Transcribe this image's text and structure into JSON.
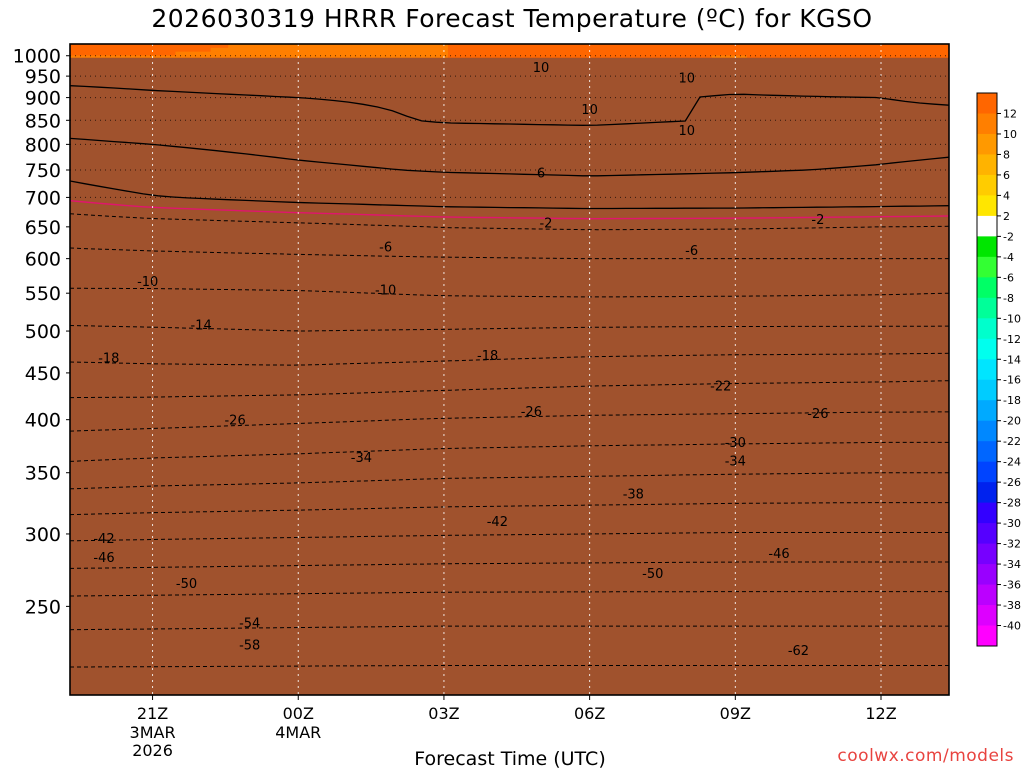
{
  "title": "2026030319 HRRR Forecast Temperature (ºC) for KGSO",
  "credit": "coolwx.com/models",
  "chart_data": {
    "type": "heatmap",
    "title": "2026030319 HRRR Forecast Temperature (ºC) for KGSO",
    "xlabel": "Forecast Time (UTC)",
    "ylabel": "",
    "x_range_hours_from_21Z": [
      -1.7,
      16.4
    ],
    "y_range_mb": [
      1030,
      200
    ],
    "y_scale": "log",
    "grid": true,
    "x_ticks": [
      {
        "hour": 0,
        "label": "21Z",
        "label2": "3MAR",
        "label3": "2026"
      },
      {
        "hour": 3,
        "label": "00Z",
        "label2": "4MAR",
        "label3": ""
      },
      {
        "hour": 6,
        "label": "03Z",
        "label2": "",
        "label3": ""
      },
      {
        "hour": 9,
        "label": "06Z",
        "label2": "",
        "label3": ""
      },
      {
        "hour": 12,
        "label": "09Z",
        "label2": "",
        "label3": ""
      },
      {
        "hour": 15,
        "label": "12Z",
        "label2": "",
        "label3": ""
      }
    ],
    "y_ticks": [
      250,
      300,
      350,
      400,
      450,
      500,
      550,
      600,
      650,
      700,
      750,
      800,
      850,
      900,
      950,
      1000
    ],
    "colorbar": {
      "placement": "right",
      "labels": [
        "12",
        "10",
        "8",
        "6",
        "4",
        "2",
        "-2",
        "-4",
        "-6",
        "-8",
        "-10",
        "-12",
        "-14",
        "-16",
        "-18",
        "-20",
        "-22",
        "-24",
        "-26",
        "-28",
        "-30",
        "-32",
        "-34",
        "-36",
        "-38",
        "-40"
      ],
      "bins": [
        {
          "hi": 14,
          "lo": 12,
          "color": "#ff6600"
        },
        {
          "hi": 12,
          "lo": 10,
          "color": "#ff7f00"
        },
        {
          "hi": 10,
          "lo": 8,
          "color": "#ff9900"
        },
        {
          "hi": 8,
          "lo": 6,
          "color": "#ffb300"
        },
        {
          "hi": 6,
          "lo": 4,
          "color": "#ffcc00"
        },
        {
          "hi": 4,
          "lo": 2,
          "color": "#ffe600"
        },
        {
          "hi": 2,
          "lo": -2,
          "color": "#ffffff"
        },
        {
          "hi": -2,
          "lo": -4,
          "color": "#00e600"
        },
        {
          "hi": -4,
          "lo": -6,
          "color": "#33ff33"
        },
        {
          "hi": -6,
          "lo": -8,
          "color": "#00ff66"
        },
        {
          "hi": -8,
          "lo": -10,
          "color": "#00ff99"
        },
        {
          "hi": -10,
          "lo": -12,
          "color": "#00ffcc"
        },
        {
          "hi": -12,
          "lo": -14,
          "color": "#00ffee"
        },
        {
          "hi": -14,
          "lo": -16,
          "color": "#00e5ff"
        },
        {
          "hi": -16,
          "lo": -18,
          "color": "#00ccff"
        },
        {
          "hi": -18,
          "lo": -20,
          "color": "#00aaff"
        },
        {
          "hi": -20,
          "lo": -22,
          "color": "#0088ff"
        },
        {
          "hi": -22,
          "lo": -24,
          "color": "#0066ff"
        },
        {
          "hi": -24,
          "lo": -26,
          "color": "#0044ff"
        },
        {
          "hi": -26,
          "lo": -28,
          "color": "#0022ee"
        },
        {
          "hi": -28,
          "lo": -30,
          "color": "#3300ff"
        },
        {
          "hi": -30,
          "lo": -32,
          "color": "#5500ff"
        },
        {
          "hi": -32,
          "lo": -34,
          "color": "#7700ff"
        },
        {
          "hi": -34,
          "lo": -36,
          "color": "#9900ff"
        },
        {
          "hi": -36,
          "lo": -38,
          "color": "#bb00ff"
        },
        {
          "hi": -38,
          "lo": -40,
          "color": "#dd00ff"
        },
        {
          "hi": -40,
          "lo": -42,
          "color": "#ff00ff"
        }
      ]
    },
    "ground_color": "#a0522d",
    "ground_level_mb": 995,
    "profile": {
      "pressures": [
        1000,
        950,
        900,
        850,
        800,
        750,
        700,
        650,
        600,
        550,
        500,
        450,
        400,
        350,
        300,
        250,
        200
      ],
      "times": [
        -1.7,
        0,
        3,
        6,
        9,
        12,
        15,
        16.4
      ],
      "temps": [
        [
          12.0,
          12.0,
          11.5,
          12.0,
          12.5,
          12.0,
          13.0,
          13.5
        ],
        [
          10.8,
          11.0,
          11.5,
          12.0,
          11.5,
          11.0,
          12.0,
          12.5
        ],
        [
          9.0,
          9.5,
          10.0,
          10.5,
          10.5,
          9.8,
          10.0,
          10.5
        ],
        [
          7.5,
          8.0,
          8.8,
          10.3,
          10.6,
          9.8,
          9.2,
          9.0
        ],
        [
          5.5,
          6.0,
          6.8,
          7.5,
          7.8,
          7.3,
          6.7,
          6.5
        ],
        [
          3.0,
          4.5,
          5.5,
          6.2,
          6.5,
          6.2,
          5.8,
          5.5
        ],
        [
          0.5,
          1.8,
          3.0,
          3.8,
          4.2,
          4.1,
          3.8,
          3.6
        ],
        [
          -4.0,
          -3.5,
          -2.8,
          -1.9,
          -1.6,
          -1.7,
          -2.0,
          -2.1
        ],
        [
          -7.0,
          -6.8,
          -6.5,
          -6.2,
          -6.0,
          -6.0,
          -6.0,
          -6.0
        ],
        [
          -10.5,
          -10.5,
          -10.3,
          -9.7,
          -9.5,
          -9.6,
          -9.8,
          -10.0
        ],
        [
          -14.6,
          -14.4,
          -14.0,
          -14.2,
          -14.5,
          -14.6,
          -14.6,
          -14.6
        ],
        [
          -19.2,
          -19.0,
          -18.9,
          -19.5,
          -20.2,
          -20.6,
          -20.8,
          -21.0
        ],
        [
          -24.5,
          -24.8,
          -25.5,
          -26.2,
          -26.6,
          -26.8,
          -27.0,
          -27.0
        ],
        [
          -31.5,
          -32.0,
          -32.5,
          -33.2,
          -33.5,
          -33.8,
          -34.0,
          -34.0
        ],
        [
          -41.0,
          -41.2,
          -41.5,
          -41.8,
          -42.0,
          -42.2,
          -42.2,
          -42.2
        ],
        [
          -51.5,
          -51.6,
          -51.8,
          -52.0,
          -52.0,
          -52.0,
          -52.0,
          -52.0
        ],
        [
          -61.0,
          -61.0,
          -61.0,
          -61.0,
          -61.0,
          -61.0,
          -61.0,
          -61.0
        ]
      ]
    },
    "contour_labels": [
      {
        "text": "-62",
        "hour": 13.3,
        "mb": 224
      },
      {
        "text": "-58",
        "hour": 2.0,
        "mb": 227
      },
      {
        "text": "-54",
        "hour": 2.0,
        "mb": 240
      },
      {
        "text": "-50",
        "hour": 0.7,
        "mb": 265
      },
      {
        "text": "-50",
        "hour": 10.3,
        "mb": 272
      },
      {
        "text": "-46",
        "hour": -1.0,
        "mb": 283
      },
      {
        "text": "-46",
        "hour": 12.9,
        "mb": 286
      },
      {
        "text": "-42",
        "hour": -1.0,
        "mb": 297
      },
      {
        "text": "-42",
        "hour": 7.1,
        "mb": 310
      },
      {
        "text": "-38",
        "hour": 9.9,
        "mb": 332
      },
      {
        "text": "-34",
        "hour": 4.3,
        "mb": 364
      },
      {
        "text": "-34",
        "hour": 12.0,
        "mb": 361
      },
      {
        "text": "-30",
        "hour": 12.0,
        "mb": 378
      },
      {
        "text": "-26",
        "hour": 1.7,
        "mb": 400
      },
      {
        "text": "-26",
        "hour": 7.8,
        "mb": 409
      },
      {
        "text": "-26",
        "hour": 13.7,
        "mb": 407
      },
      {
        "text": "-22",
        "hour": 11.7,
        "mb": 436
      },
      {
        "text": "-18",
        "hour": -0.9,
        "mb": 468
      },
      {
        "text": "-18",
        "hour": 6.9,
        "mb": 471
      },
      {
        "text": "-14",
        "hour": 1.0,
        "mb": 508
      },
      {
        "text": "-10",
        "hour": -0.1,
        "mb": 567
      },
      {
        "text": "-10",
        "hour": 4.8,
        "mb": 555
      },
      {
        "text": "-6",
        "hour": 4.8,
        "mb": 619
      },
      {
        "text": "-6",
        "hour": 11.1,
        "mb": 613
      },
      {
        "text": "-2",
        "hour": 8.1,
        "mb": 657
      },
      {
        "text": "-2",
        "hour": 13.7,
        "mb": 663
      },
      {
        "text": "6",
        "hour": 8.0,
        "mb": 745
      },
      {
        "text": "10",
        "hour": 11.0,
        "mb": 829
      },
      {
        "text": "10",
        "hour": 9.0,
        "mb": 874
      },
      {
        "text": "10",
        "hour": 11.0,
        "mb": 947
      },
      {
        "text": "10",
        "hour": 8.0,
        "mb": 972
      }
    ]
  }
}
